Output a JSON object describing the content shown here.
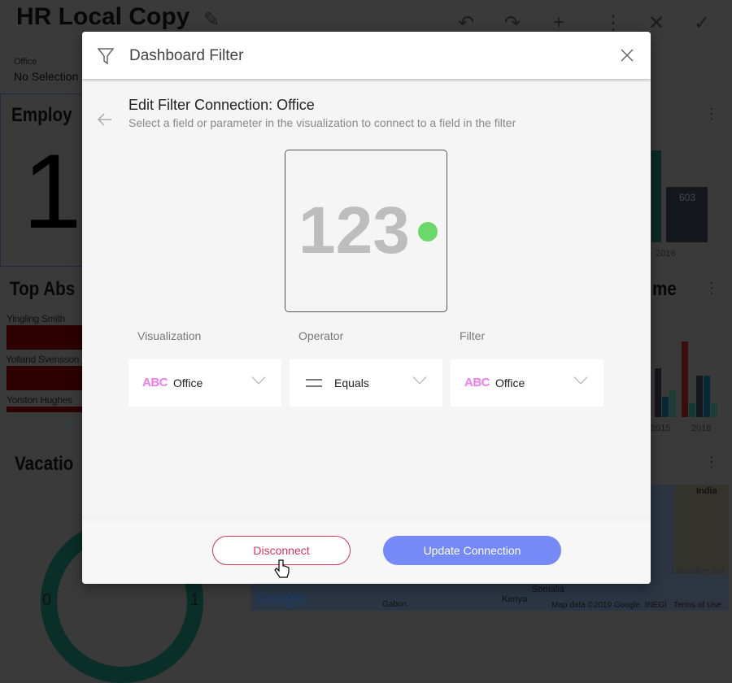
{
  "dashboard": {
    "title": "HR Local Copy",
    "filter": {
      "label": "Office",
      "value": "No Selection"
    },
    "widgets": [
      {
        "title": "Employ",
        "value": "1"
      },
      {
        "title": "Top Abs",
        "rows": [
          "Yingling Smith",
          "Yolland Svensson",
          "Yorston Hughes"
        ],
        "axis_tick": "2"
      },
      {
        "title": "Vacatio",
        "gauge_min": "0",
        "gauge_max": "1"
      },
      {
        "title": "me",
        "x_labels": [
          "2015",
          "2016"
        ]
      }
    ],
    "bar_label": "603",
    "bar_year": "2016",
    "map": {
      "labels": [
        "India",
        "Laccadive Sea",
        "Somalia",
        "Kenya",
        "Gabon"
      ],
      "attribution": "Map data ©2019 Google, INEGI",
      "terms": "Terms of Use",
      "logo": "Google"
    }
  },
  "dialog": {
    "title": "Dashboard Filter",
    "subtitle": "Edit Filter Connection: Office",
    "description": "Select a field or parameter in the visualization to connect to a field in the filter",
    "preview_number": "123",
    "columns": [
      {
        "label": "Visualization",
        "icon": "ABC",
        "value": "Office"
      },
      {
        "label": "Operator",
        "icon": "equals-icon",
        "value": "Equals"
      },
      {
        "label": "Filter",
        "icon": "ABC",
        "value": "Office"
      }
    ],
    "disconnect_label": "Disconnect",
    "update_label": "Update Connection",
    "colors": {
      "disconnect": "#d9345a",
      "update": "#7589f8",
      "indicator": "#6ad96a",
      "type_icon": "#f07cf0"
    }
  }
}
